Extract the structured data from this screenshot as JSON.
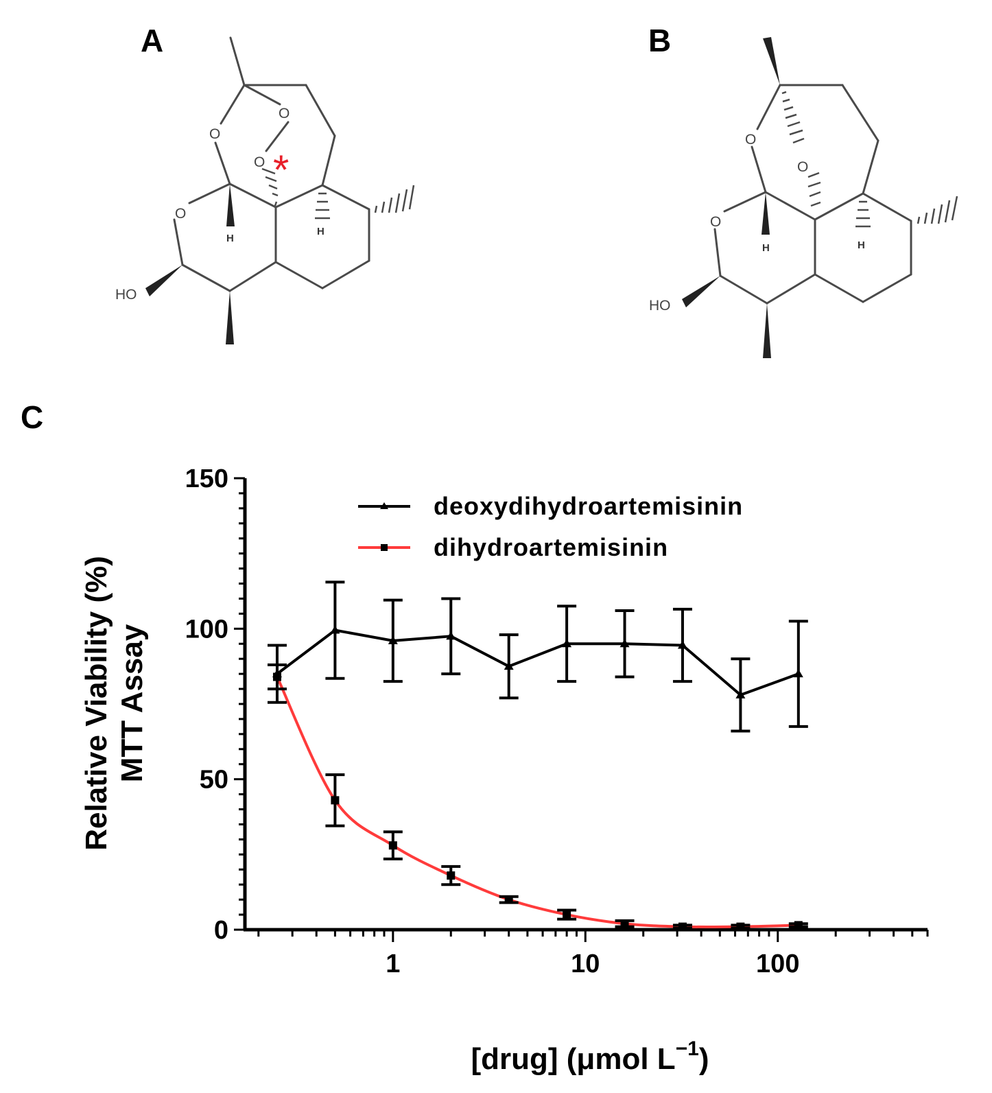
{
  "panels": {
    "a_label": "A",
    "b_label": "B",
    "c_label": "C"
  },
  "structures": {
    "oxygen": "O",
    "hydroxyl": "HO",
    "hydrogen": "H",
    "marker": "*",
    "marker_color": "#e8202a"
  },
  "chart_data": {
    "type": "line",
    "xscale": "log",
    "xlim": [
      0.17,
      600
    ],
    "ylim": [
      0,
      150
    ],
    "x_ticks": [
      1,
      10,
      100
    ],
    "x_tick_labels": [
      "1",
      "10",
      "100"
    ],
    "y_ticks": [
      0,
      50,
      100,
      150
    ],
    "y_tick_labels": [
      "0",
      "50",
      "100",
      "150"
    ],
    "xlabel": "[drug] (μmol L",
    "xlabel_superscript": "−1",
    "xlabel_close": ")",
    "ylabel": "Relative Viability (%)",
    "ylabel2": "MTT  Assay",
    "legend_position": "top-right",
    "x": [
      0.25,
      0.5,
      1,
      2,
      4,
      8,
      16,
      32,
      64,
      128
    ],
    "series": [
      {
        "name": "deoxydihydroartemisinin",
        "color": "#000000",
        "marker": "triangle",
        "values": [
          85,
          99.5,
          96,
          97.5,
          87.5,
          95,
          95,
          94.5,
          78,
          85
        ],
        "errors": [
          9.5,
          16,
          13.5,
          12.5,
          10.5,
          12.5,
          11,
          12,
          12,
          17.5
        ]
      },
      {
        "name": "dihydroartemisinin",
        "color": "#ff3b3b",
        "marker": "square",
        "values": [
          84,
          43,
          28,
          18,
          10,
          5,
          2,
          1,
          1,
          1.5
        ],
        "errors": [
          4,
          8.5,
          4.5,
          3,
          1,
          1.5,
          1,
          0.5,
          0.5,
          0.5
        ]
      }
    ]
  }
}
